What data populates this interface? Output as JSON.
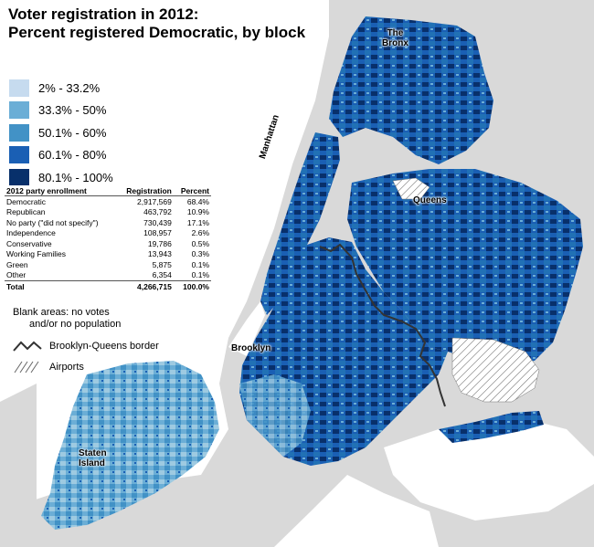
{
  "title": {
    "line1": "Voter registration in 2012:",
    "line2": "Percent registered Democratic, by block"
  },
  "legend": [
    {
      "label": "2% - 33.2%",
      "color": "#c6dbef"
    },
    {
      "label": "33.3% - 50%",
      "color": "#6baed6"
    },
    {
      "label": "50.1% - 60%",
      "color": "#4292c6"
    },
    {
      "label": "60.1% - 80%",
      "color": "#1a5fb4"
    },
    {
      "label": "80.1% - 100%",
      "color": "#08306b"
    }
  ],
  "table": {
    "headers": [
      "2012 party enrollment",
      "Registration",
      "Percent"
    ],
    "rows": [
      [
        "Democratic",
        "2,917,569",
        "68.4%"
      ],
      [
        "Republican",
        "463,792",
        "10.9%"
      ],
      [
        "No party (\"did not specify\")",
        "730,439",
        "17.1%"
      ],
      [
        "Independence",
        "108,957",
        "2.6%"
      ],
      [
        "Conservative",
        "19,786",
        "0.5%"
      ],
      [
        "Working Families",
        "13,943",
        "0.3%"
      ],
      [
        "Green",
        "5,875",
        "0.1%"
      ],
      [
        "Other",
        "6,354",
        "0.1%"
      ]
    ],
    "total": [
      "Total",
      "4,266,715",
      "100.0%"
    ]
  },
  "notes": {
    "blank_line1": "Blank areas: no votes",
    "blank_line2": "and/or no population",
    "border_label": "Brooklyn-Queens border",
    "airports_label": "Airports"
  },
  "places": {
    "bronx_line1": "The",
    "bronx_line2": "Bronx",
    "manhattan": "Manhattan",
    "queens": "Queens",
    "brooklyn": "Brooklyn",
    "staten_line1": "Staten",
    "staten_line2": "Island"
  },
  "colors": {
    "land_outside": "#d9d9d9",
    "water": "#ffffff",
    "border_line": "#333333"
  }
}
